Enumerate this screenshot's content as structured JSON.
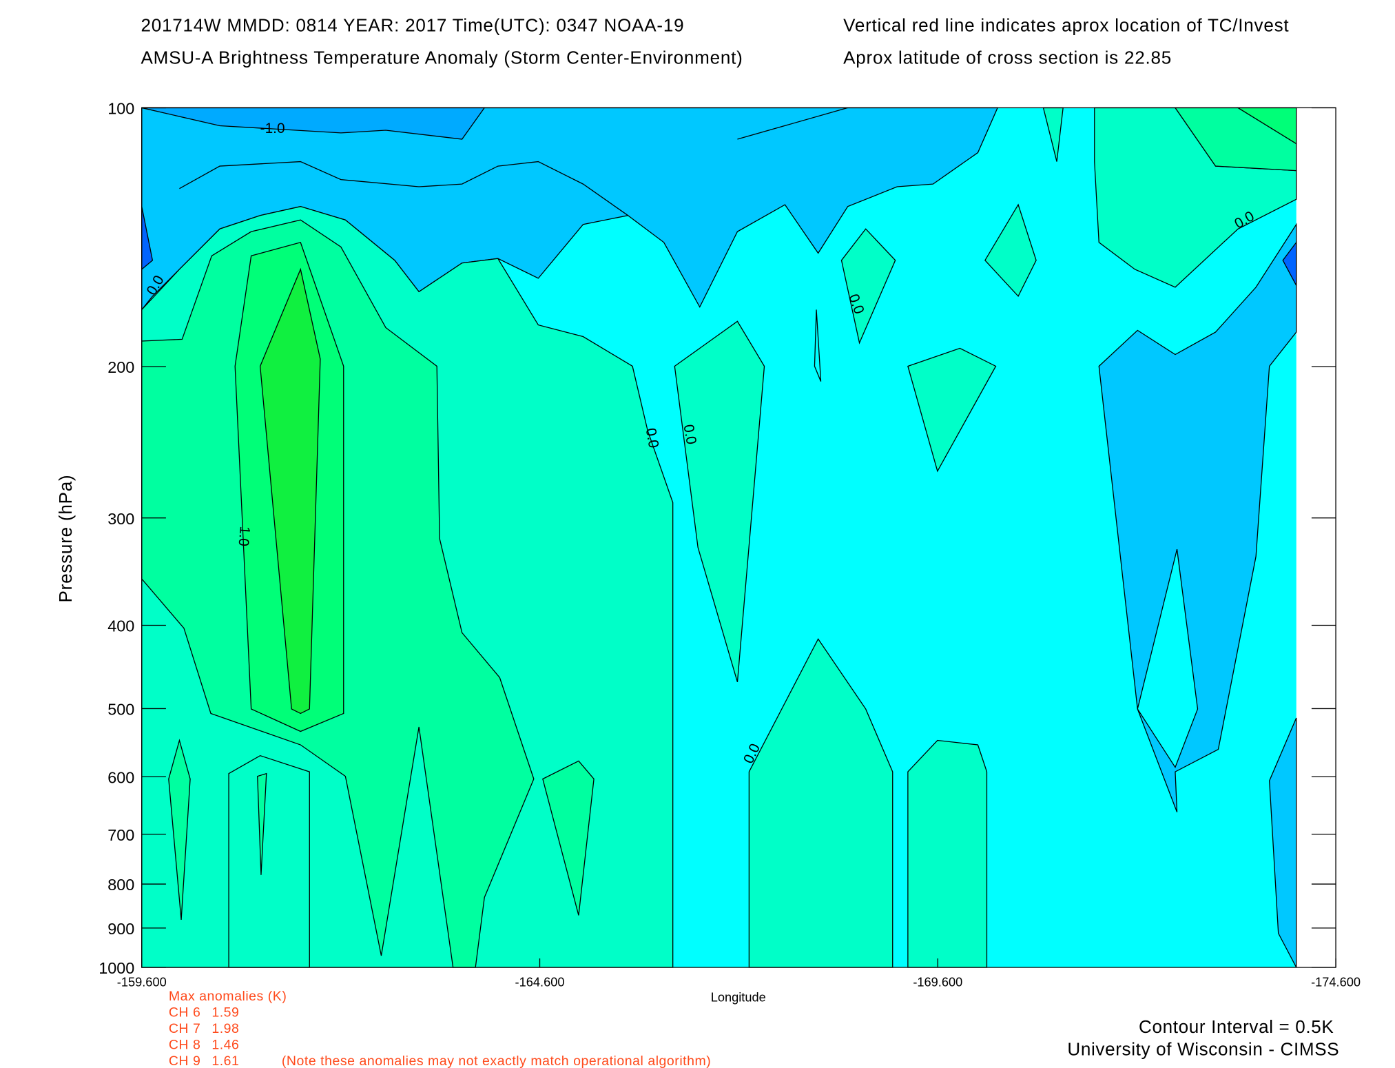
{
  "chart_data": {
    "type": "contour",
    "title": "201714W  MMDD: 0814 YEAR: 2017 Time(UTC): 0347 NOAA-19",
    "subtitle": "AMSU-A Brightness Temperature Anomaly (Storm Center-Environment)",
    "note_1": "Vertical red line indicates aprox location of TC/Invest",
    "note_2": "Aprox latitude of cross section is 22.85",
    "x_label": "Longitude",
    "y_label": "Pressure (hPa)",
    "xlim": [
      -159.6,
      -174.6
    ],
    "xticks": [
      {
        "value": -159.6,
        "label": "-159.600"
      },
      {
        "value": -164.6,
        "label": "-164.600"
      },
      {
        "value": -169.6,
        "label": "-169.600"
      },
      {
        "value": -174.6,
        "label": "-174.600"
      }
    ],
    "ylim": [
      1000,
      100
    ],
    "y_log": true,
    "yticks": [
      100,
      200,
      300,
      400,
      500,
      600,
      700,
      800,
      900,
      1000
    ],
    "contour_labels": [
      "-1.0",
      "0.0",
      "1.0"
    ],
    "max_anomalies": {
      "title": "Max anomalies (K)",
      "rows": [
        {
          "channel": "CH 6",
          "value": 1.59
        },
        {
          "channel": "CH 7",
          "value": 1.98
        },
        {
          "channel": "CH 8",
          "value": 1.46
        },
        {
          "channel": "CH 9",
          "value": 1.61
        }
      ],
      "note": "(Note these anomalies may not exactly match operational algorithm)"
    },
    "contour_interval": "Contour Interval = 0.5K",
    "credit": "University of Wisconsin - CIMSS"
  }
}
